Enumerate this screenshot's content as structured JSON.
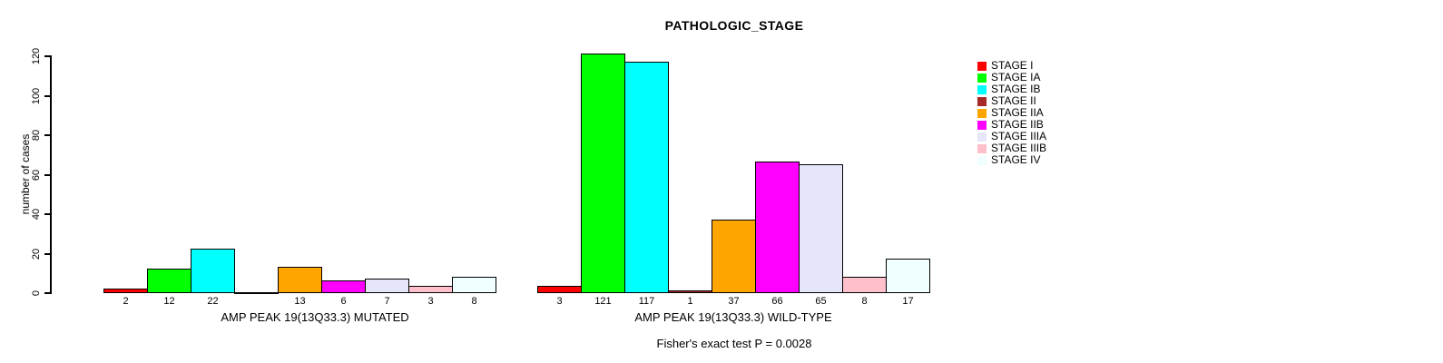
{
  "chart_data": {
    "type": "bar",
    "title": "PATHOLOGIC_STAGE",
    "ylabel": "number of cases",
    "ylim": [
      0,
      120
    ],
    "yticks": [
      0,
      20,
      40,
      60,
      80,
      100,
      120
    ],
    "grid": false,
    "legend_position": "right",
    "annotation": "Fisher's exact test P = 0.0028",
    "categories": [
      "STAGE I",
      "STAGE IA",
      "STAGE IB",
      "STAGE II",
      "STAGE IIA",
      "STAGE IIB",
      "STAGE IIIA",
      "STAGE IIIB",
      "STAGE IV"
    ],
    "colors": [
      "#ff0000",
      "#00ff00",
      "#00ffff",
      "#a52a2a",
      "#ffa500",
      "#ff00ff",
      "#e6e6fa",
      "#ffc0cb",
      "#f0ffff"
    ],
    "series": [
      {
        "name": "AMP PEAK 19(13Q33.3) MUTATED",
        "values": [
          2,
          12,
          22,
          0,
          13,
          6,
          7,
          3,
          8
        ]
      },
      {
        "name": "AMP PEAK 19(13Q33.3) WILD-TYPE",
        "values": [
          3,
          121,
          117,
          1,
          37,
          66,
          65,
          8,
          17
        ]
      }
    ],
    "value_labels_shown": true,
    "background": "#ffffff",
    "text_color": "#000000"
  }
}
